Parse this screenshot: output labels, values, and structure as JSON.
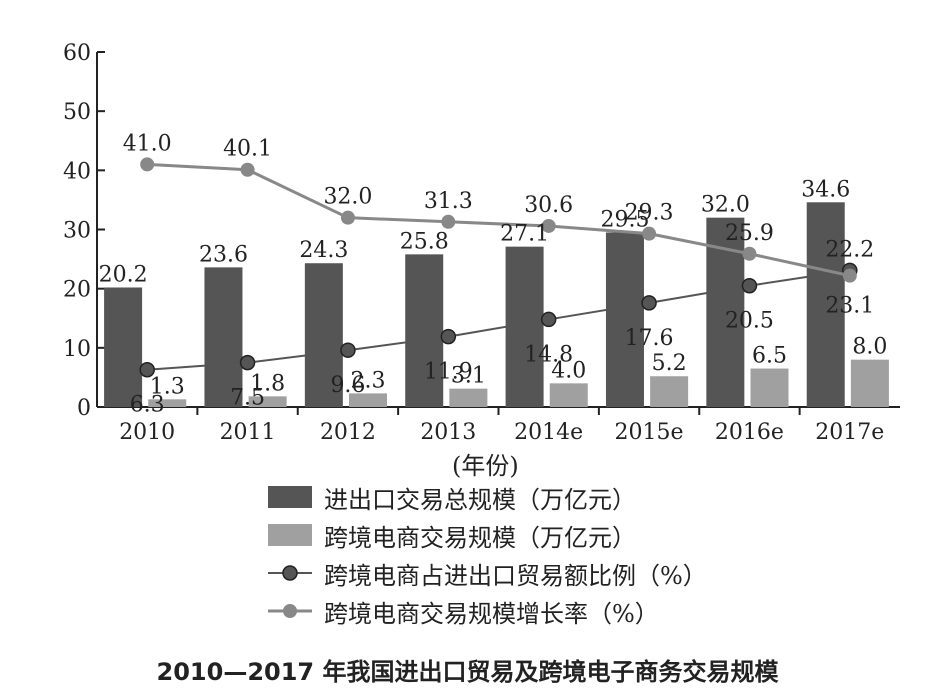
{
  "chart_data": {
    "type": "bar",
    "title": "2010—2017 年我国进出口贸易及跨境电子商务交易规模",
    "xlabel": "(年份)",
    "ylabel": "",
    "ylim": [
      0,
      60
    ],
    "yticks": [
      "0",
      "10",
      "20",
      "30",
      "40",
      "50",
      "60"
    ],
    "categories": [
      "2010",
      "2011",
      "2012",
      "2013",
      "2014e",
      "2015e",
      "2016e",
      "2017e"
    ],
    "series": [
      {
        "name": "进出口交易总规模（万亿元）",
        "kind": "bar",
        "color": "#555555",
        "values": [
          20.2,
          23.6,
          24.3,
          25.8,
          27.1,
          29.5,
          32.0,
          34.6
        ],
        "labels": [
          "20.2",
          "23.6",
          "24.3",
          "25.8",
          "27.1",
          "29.5",
          "32.0",
          "34.6"
        ]
      },
      {
        "name": "跨境电商交易规模（万亿元）",
        "kind": "bar",
        "color": "#a0a0a0",
        "values": [
          1.3,
          1.8,
          2.3,
          3.1,
          4.0,
          5.2,
          6.5,
          8.0
        ],
        "labels": [
          "1.3",
          "1.8",
          "2.3",
          "3.1",
          "4.0",
          "5.2",
          "6.5",
          "8.0"
        ]
      },
      {
        "name": "跨境电商占进出口贸易额比例（%）",
        "kind": "line",
        "color": "#555555",
        "values": [
          6.3,
          7.5,
          9.6,
          11.9,
          14.8,
          17.6,
          20.5,
          23.1
        ],
        "labels": [
          "6.3",
          "7.5",
          "9.6",
          "11.9",
          "14.8",
          "17.6",
          "20.5",
          "23.1"
        ]
      },
      {
        "name": "跨境电商交易规模增长率（%）",
        "kind": "line",
        "color": "#888888",
        "values": [
          41.0,
          40.1,
          32.0,
          31.3,
          30.6,
          29.3,
          25.9,
          22.2
        ],
        "labels": [
          "41.0",
          "40.1",
          "32.0",
          "31.3",
          "30.6",
          "29.3",
          "25.9",
          "22.2"
        ]
      }
    ],
    "grid": false,
    "legend_position": "bottom"
  }
}
